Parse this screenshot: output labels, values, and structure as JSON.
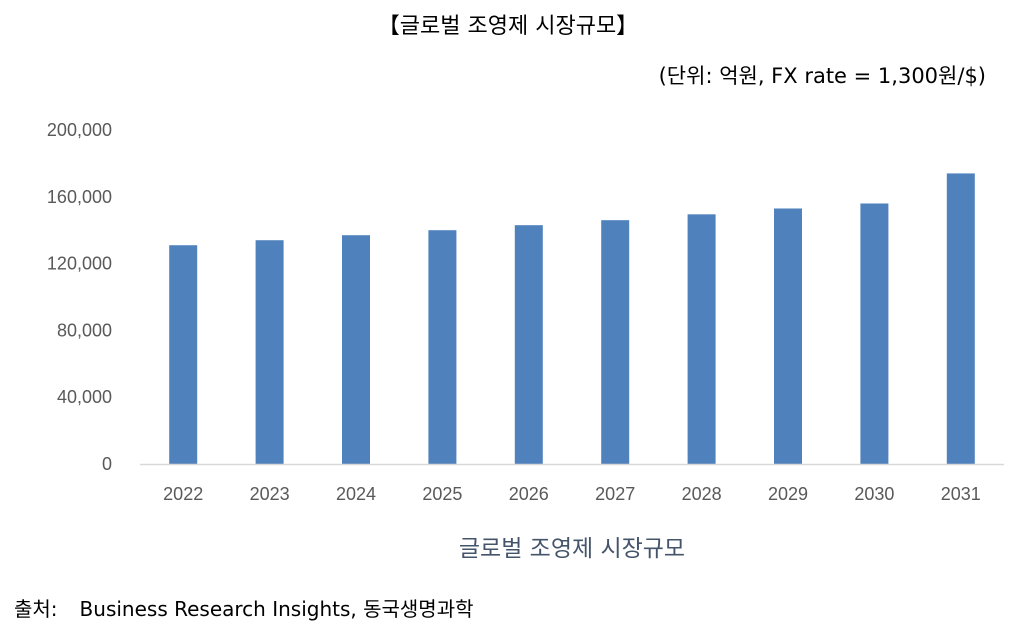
{
  "header": {
    "title": "【글로벌 조영제 시장규모】",
    "unit_note": "(단위: 억원, FX rate = 1,300원/$)"
  },
  "chart_data": {
    "type": "bar",
    "title": "",
    "xlabel": "글로벌 조영제 시장규모",
    "ylabel": "",
    "categories": [
      "2022",
      "2023",
      "2024",
      "2025",
      "2026",
      "2027",
      "2028",
      "2029",
      "2030",
      "2031"
    ],
    "series": [
      {
        "values": [
          131000,
          134000,
          137000,
          140000,
          143000,
          146000,
          149500,
          153000,
          156000,
          174000
        ]
      }
    ],
    "ylim": [
      0,
      200000
    ],
    "yticks": [
      0,
      40000,
      80000,
      120000,
      160000,
      200000
    ],
    "ytick_labels": [
      "0",
      "40,000",
      "80,000",
      "120,000",
      "160,000",
      "200,000"
    ],
    "grid": false,
    "legend": "none",
    "bar_color": "#4f81bd",
    "axis_color": "#d9d9d9"
  },
  "footer": {
    "source_label": "출처:",
    "source_text": "Business Research Insights, 동국생명과학"
  }
}
